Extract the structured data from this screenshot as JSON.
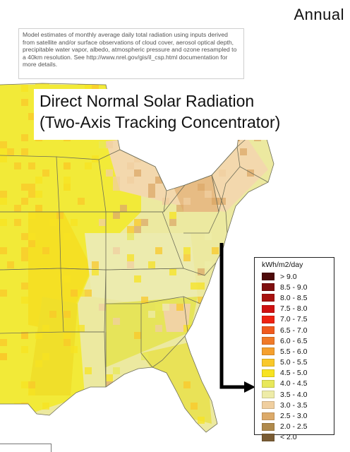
{
  "period": "Annual",
  "description": "Model estimates of monthly average daily total radiation using inputs derived from satellite and/or surface observations of cloud cover, aerosol optical depth, precipitable water vapor, albedo, atmospheric pressure and ozone resampled to a 40km resolution. See http://www.nrel.gov/gis/il_csp.html documentation for more details.",
  "title_line1": "Direct Normal Solar Radiation",
  "title_line2": "(Two-Axis Tracking Concentrator)",
  "legend": {
    "unit": "kWh/m2/day",
    "classes": [
      {
        "label": "> 9.0",
        "color": "#4d0a0a"
      },
      {
        "label": "8.5 - 9.0",
        "color": "#7f0f0f"
      },
      {
        "label": "8.0 - 8.5",
        "color": "#a8120f"
      },
      {
        "label": "7.5 - 8.0",
        "color": "#cf1111"
      },
      {
        "label": "7.0 - 7.5",
        "color": "#ee2211"
      },
      {
        "label": "6.5 - 7.0",
        "color": "#f05a1e"
      },
      {
        "label": "6.0 - 6.5",
        "color": "#f07a28"
      },
      {
        "label": "5.5 - 6.0",
        "color": "#f5a02e"
      },
      {
        "label": "5.0 - 5.5",
        "color": "#f9c82a"
      },
      {
        "label": "4.5 - 5.0",
        "color": "#f7e322"
      },
      {
        "label": "4.0 - 4.5",
        "color": "#e8e85a"
      },
      {
        "label": "3.5 - 4.0",
        "color": "#eeeca8"
      },
      {
        "label": "3.0 - 3.5",
        "color": "#f0cfa0"
      },
      {
        "label": "2.5 - 3.0",
        "color": "#dcaa6a"
      },
      {
        "label": "2.0 - 2.5",
        "color": "#b08a4c"
      },
      {
        "label": "< 2.0",
        "color": "#7a5c34"
      }
    ]
  },
  "colors": {
    "ocean": "#ffffff",
    "state_border": "#7a7a5a",
    "arrow": "#000000"
  }
}
